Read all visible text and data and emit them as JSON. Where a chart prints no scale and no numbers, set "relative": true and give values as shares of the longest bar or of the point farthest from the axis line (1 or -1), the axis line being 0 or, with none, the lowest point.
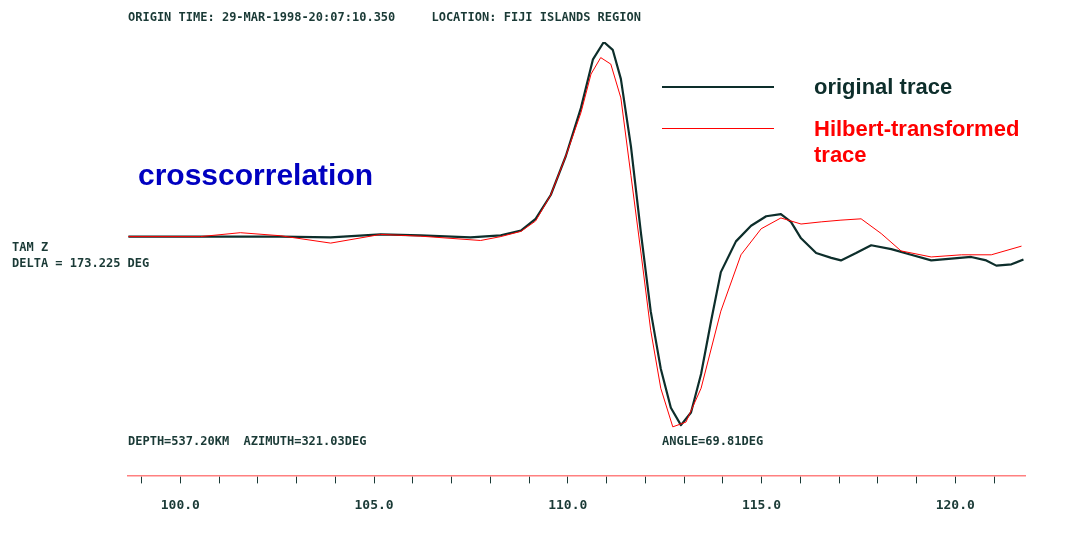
{
  "chart_data": {
    "type": "line",
    "relative": true,
    "title": "ORIGIN TIME: 29-MAR-1998-20:07:10.350     LOCATION: FIJI ISLANDS REGION",
    "annotations": [
      "crosscorrelation",
      "TAM Z",
      "DELTA = 173.225 DEG",
      "DEPTH=537.20KM  AZIMUTH=321.03DEG",
      "ANGLE=69.81DEG"
    ],
    "legend": "top right",
    "marker": "none",
    "line_style": "solid",
    "xlim": [
      98.65,
      121.8
    ],
    "xticks": [
      {
        "value": 99,
        "label": null
      },
      {
        "value": 100,
        "label": "100.0"
      },
      {
        "value": 101,
        "label": null
      },
      {
        "value": 102,
        "label": null
      },
      {
        "value": 103,
        "label": null
      },
      {
        "value": 104,
        "label": null
      },
      {
        "value": 105,
        "label": "105.0"
      },
      {
        "value": 106,
        "label": null
      },
      {
        "value": 107,
        "label": null
      },
      {
        "value": 108,
        "label": null
      },
      {
        "value": 109,
        "label": null
      },
      {
        "value": 110,
        "label": "110.0"
      },
      {
        "value": 111,
        "label": null
      },
      {
        "value": 112,
        "label": null
      },
      {
        "value": 113,
        "label": null
      },
      {
        "value": 114,
        "label": null
      },
      {
        "value": 115,
        "label": "115.0"
      },
      {
        "value": 116,
        "label": null
      },
      {
        "value": 117,
        "label": null
      },
      {
        "value": 118,
        "label": null
      },
      {
        "value": 119,
        "label": null
      },
      {
        "value": 120,
        "label": "120.0"
      },
      {
        "value": 121,
        "label": null
      }
    ],
    "series": [
      {
        "name": "original trace",
        "color": "#0d2e2b",
        "x": [
          98.66,
          100.52,
          102.58,
          103.88,
          105.17,
          106.2,
          107.49,
          108.27,
          108.79,
          109.17,
          109.56,
          109.95,
          110.34,
          110.65,
          110.93,
          111.16,
          111.37,
          111.63,
          111.89,
          112.14,
          112.4,
          112.66,
          112.92,
          113.18,
          113.44,
          113.7,
          113.95,
          114.34,
          114.73,
          115.12,
          115.5,
          115.76,
          116.02,
          116.41,
          116.8,
          117.05,
          117.44,
          117.83,
          118.35,
          118.86,
          119.38,
          119.9,
          120.41,
          120.8,
          121.06,
          121.45,
          121.76
        ],
        "values": [
          0.551,
          0.551,
          0.551,
          0.549,
          0.556,
          0.554,
          0.549,
          0.554,
          0.565,
          0.592,
          0.647,
          0.737,
          0.848,
          0.96,
          1,
          0.982,
          0.915,
          0.759,
          0.558,
          0.379,
          0.246,
          0.156,
          0.116,
          0.145,
          0.234,
          0.357,
          0.469,
          0.54,
          0.576,
          0.598,
          0.603,
          0.585,
          0.547,
          0.513,
          0.502,
          0.496,
          0.513,
          0.531,
          0.522,
          0.509,
          0.496,
          0.5,
          0.504,
          0.496,
          0.484,
          0.487,
          0.498
        ]
      },
      {
        "name": "Hilbert-transformed trace",
        "color": "#ff0000",
        "x": [
          98.66,
          100.52,
          101.55,
          102.58,
          103.88,
          105.17,
          106.2,
          107.75,
          108.27,
          108.79,
          109.17,
          109.56,
          109.95,
          110.34,
          110.6,
          110.85,
          111.11,
          111.37,
          111.63,
          111.89,
          112.14,
          112.4,
          112.71,
          113.05,
          113.44,
          113.95,
          114.47,
          114.99,
          115.5,
          116.02,
          116.54,
          117.05,
          117.57,
          118.09,
          118.6,
          119.38,
          120.16,
          120.93,
          121.71
        ],
        "values": [
          0.551,
          0.551,
          0.56,
          0.553,
          0.536,
          0.556,
          0.552,
          0.542,
          0.551,
          0.563,
          0.587,
          0.647,
          0.737,
          0.837,
          0.926,
          0.964,
          0.949,
          0.871,
          0.692,
          0.513,
          0.335,
          0.201,
          0.112,
          0.123,
          0.201,
          0.379,
          0.509,
          0.569,
          0.594,
          0.58,
          0.585,
          0.589,
          0.592,
          0.558,
          0.518,
          0.504,
          0.509,
          0.509,
          0.529
        ]
      }
    ]
  }
}
